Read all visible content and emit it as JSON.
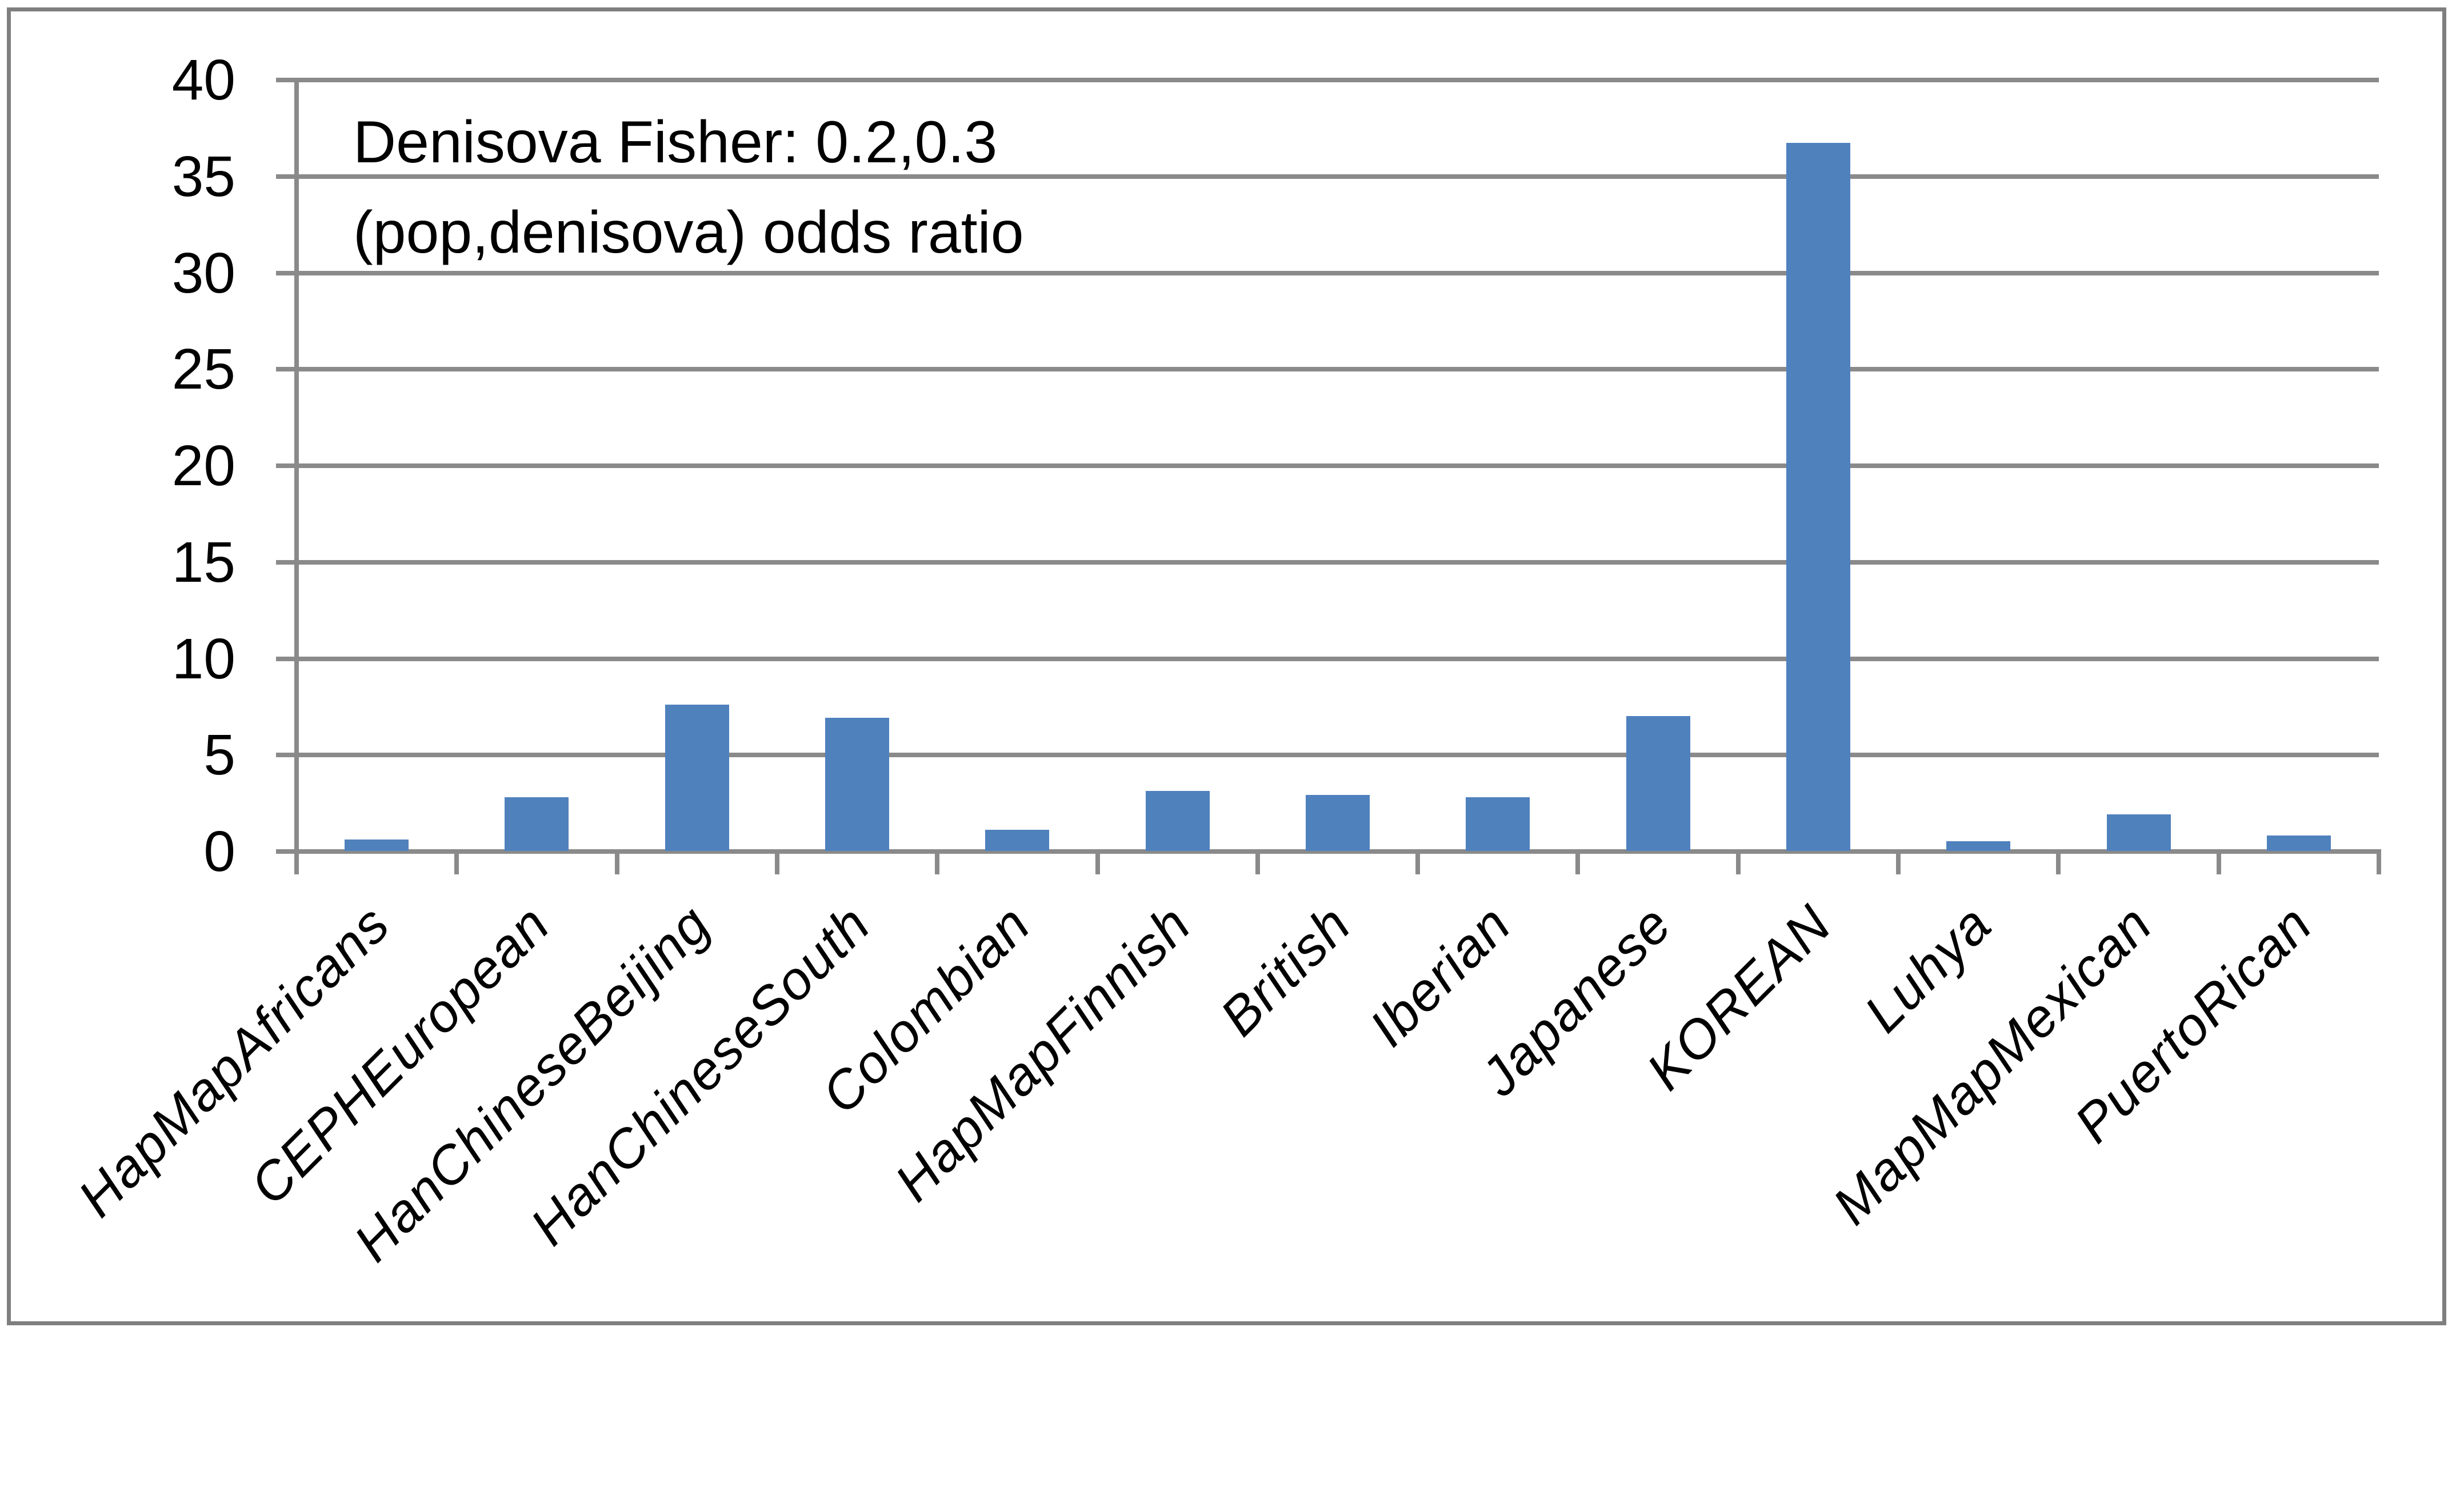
{
  "chart_data": {
    "type": "bar",
    "title_lines": [
      "Denisova Fisher: 0.2,0.3",
      "(pop,denisova) odds ratio"
    ],
    "categories": [
      "HapMapAfricans",
      "CEPHEuropean",
      "HanChineseBeijing",
      "HanChineseSouth",
      "Colombian",
      "HapMapFinnish",
      "British",
      "Iberian",
      "Japanese",
      "KOREAN",
      "Luhya",
      "MapMapMexican",
      "PuertoRican"
    ],
    "values": [
      0.6,
      2.8,
      7.6,
      6.9,
      1.1,
      3.1,
      2.9,
      2.8,
      7.0,
      36.7,
      0.5,
      1.9,
      0.8
    ],
    "ylim": [
      0,
      40
    ],
    "yticks": [
      40,
      35,
      30,
      25,
      20,
      15,
      10,
      5,
      0
    ],
    "grid": true,
    "legend_position": "none",
    "bar_color": "#4F81BD",
    "gridline_color": "#8A8A8A",
    "frame_color": "#7F7F7F",
    "text_color": "#000000"
  }
}
